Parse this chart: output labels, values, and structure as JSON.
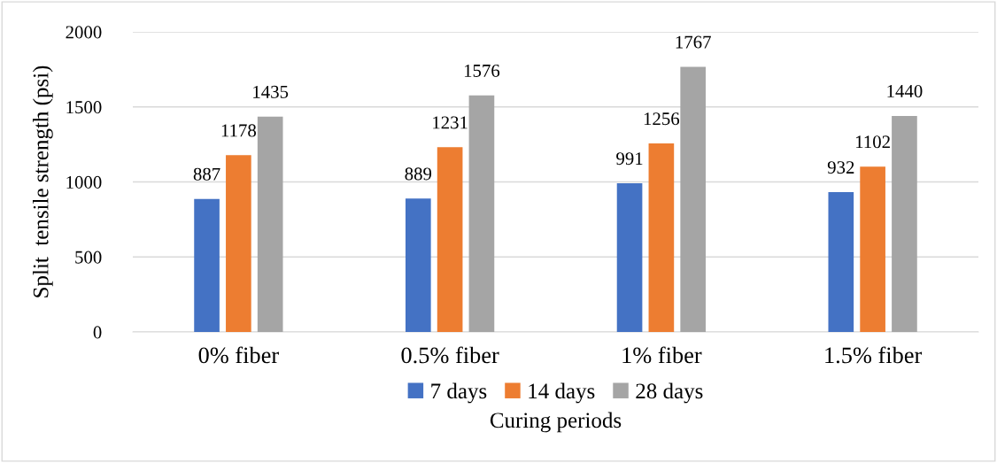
{
  "chart_data": {
    "type": "bar",
    "categories": [
      "0% fiber",
      "0.5% fiber",
      "1% fiber",
      "1.5% fiber"
    ],
    "series": [
      {
        "name": "7 days",
        "color": "#4472c4",
        "values": [
          887,
          889,
          991,
          932
        ]
      },
      {
        "name": "14 days",
        "color": "#ed7d31",
        "values": [
          1178,
          1231,
          1256,
          1102
        ]
      },
      {
        "name": "28 days",
        "color": "#a5a5a5",
        "values": [
          1435,
          1576,
          1767,
          1440
        ]
      }
    ],
    "ylabel": "Split  tensile strength (psi)",
    "xlabel": "Curing periods",
    "ylim": [
      0,
      2000
    ],
    "yticks": [
      0,
      500,
      1000,
      1500,
      2000
    ],
    "grid": "y",
    "legend": "bottom",
    "data_labels": true
  }
}
